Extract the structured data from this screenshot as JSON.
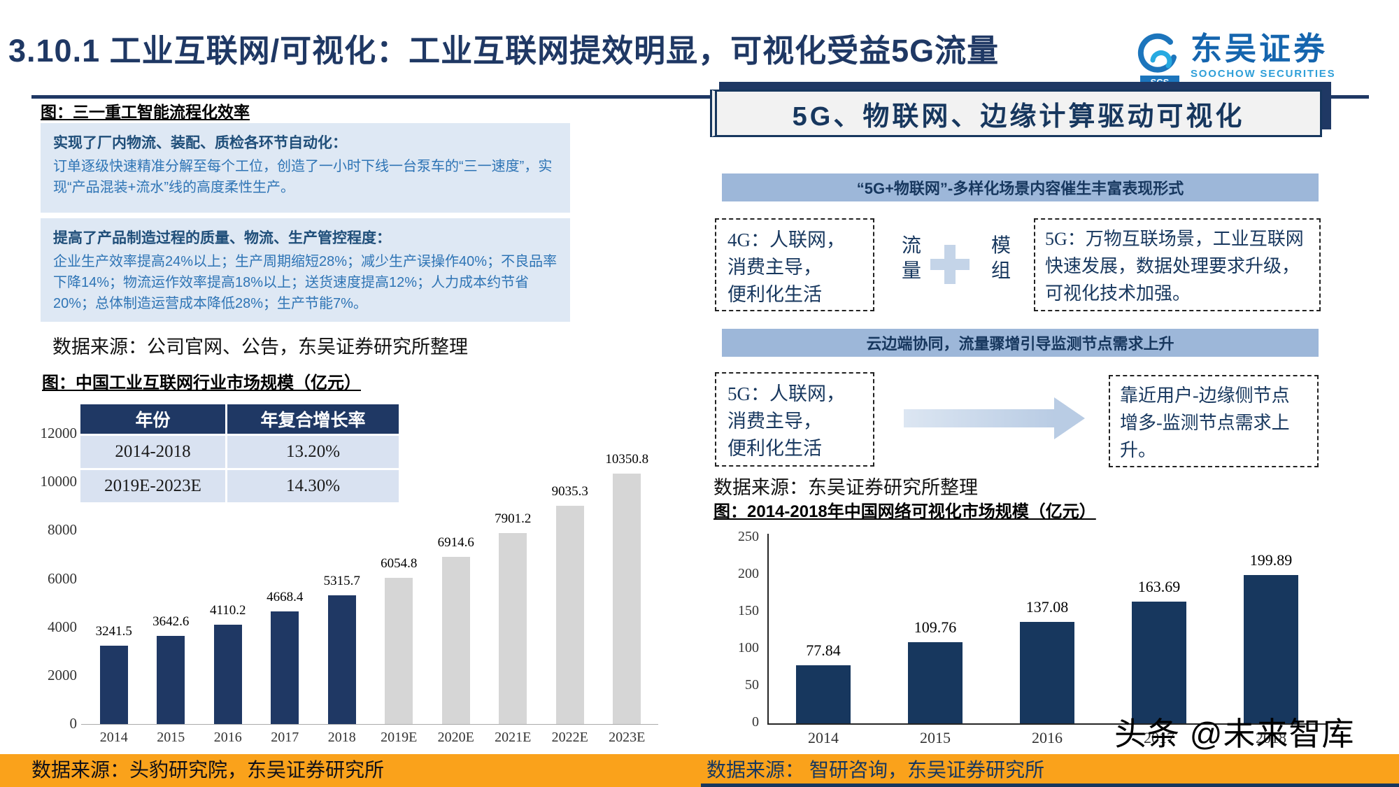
{
  "header": {
    "title": "3.10.1 工业互联网/可视化：工业互联网提效明显，可视化受益5G流量",
    "logo": {
      "cn": "东吴证券",
      "en": "SOOCHOW SECURITIES",
      "icon_text": "SCS"
    }
  },
  "left": {
    "fig1_label": "图：三一重工智能流程化效率",
    "infobox": {
      "h1": "实现了厂内物流、装配、质检各环节自动化：",
      "p1": "订单逐级快速精准分解至每个工位，创造了一小时下线一台泵车的“三一速度”，实现“产品混装+流水”线的高度柔性生产。",
      "h2": "提高了产品制造过程的质量、物流、生产管控程度：",
      "p2": "企业生产效率提高24%以上；生产周期缩短28%；减少生产误操作40%；不良品率下降14%；物流运作效率提高18%以上；送货速度提高12%；人力成本约节省20%；总体制造运营成本降低28%；生产节能7%。"
    },
    "source1": "数据来源：公司官网、公告，东吴证券研究所整理",
    "fig2_label": "图：中国工业互联网行业市场规模（亿元）",
    "table": {
      "headers": [
        "年份",
        "年复合增长率"
      ],
      "rows": [
        [
          "2014-2018",
          "13.20%"
        ],
        [
          "2019E-2023E",
          "14.30%"
        ]
      ]
    },
    "source2": "数据来源：头豹研究院，东吴证券研究所"
  },
  "right": {
    "box_title": "5G、物联网、边缘计算驱动可视化",
    "banner1": "“5G+物联网”-多样化场景内容催生丰富表现形式",
    "flow1": {
      "left_box": "4G：人联网，\n消费主导，\n便利化生活",
      "mid_left": "流量",
      "mid_right": "模组",
      "right_box": "5G：万物互联场景，工业互联网快速发展，数据处理要求升级，可视化技术加强。"
    },
    "banner2": "云边端协同，流量骤增引导监测节点需求上升",
    "flow2": {
      "left_box": "5G：人联网，\n消费主导，\n便利化生活",
      "right_box": "靠近用户-边缘侧节点增多-监测节点需求上升。"
    },
    "source1": "数据来源：东吴证券研究所整理",
    "fig_label": "图：2014-2018年中国网络可视化市场规模（亿元）",
    "source2": "数据来源： 智研咨询，东吴证券研究所"
  },
  "watermark": "头条 @未来智库",
  "colors": {
    "navy": "#1F3864",
    "deep_navy": "#17375E",
    "light_blue_box": "#DEE8F4",
    "banner_blue": "#9DB7D9",
    "bar_dark": "#1F3864",
    "bar_gray": "#D6D6D6",
    "bar_navy": "#17375E",
    "orange_strip": "#FAA21B"
  },
  "chart_data": [
    {
      "type": "bar",
      "title": "中国工业互联网行业市场规模（亿元）",
      "xlabel": "",
      "ylabel": "",
      "categories": [
        "2014",
        "2015",
        "2016",
        "2017",
        "2018",
        "2019E",
        "2020E",
        "2021E",
        "2022E",
        "2023E"
      ],
      "values": [
        3241.5,
        3642.6,
        4110.2,
        4668.4,
        5315.7,
        6054.8,
        6914.6,
        7901.2,
        9035.3,
        10350.8
      ],
      "ylim": [
        0,
        12000
      ],
      "yticks": [
        0,
        2000,
        4000,
        6000,
        8000,
        10000,
        12000
      ],
      "bar_colors": [
        "#1F3864",
        "#1F3864",
        "#1F3864",
        "#1F3864",
        "#1F3864",
        "#D6D6D6",
        "#D6D6D6",
        "#D6D6D6",
        "#D6D6D6",
        "#D6D6D6"
      ],
      "annotations": {
        "cagr_2014_2018": "13.20%",
        "cagr_2019E_2023E": "14.30%"
      },
      "grid": false,
      "legend": "none"
    },
    {
      "type": "bar",
      "title": "2014-2018年中国网络可视化市场规模（亿元）",
      "xlabel": "",
      "ylabel": "",
      "categories": [
        "2014",
        "2015",
        "2016",
        "2017",
        "2018"
      ],
      "values": [
        77.84,
        109.76,
        137.08,
        163.69,
        199.89
      ],
      "ylim": [
        0,
        250
      ],
      "yticks": [
        0,
        50,
        100,
        150,
        200,
        250
      ],
      "bar_color": "#17375E",
      "grid": false,
      "legend": "none"
    }
  ]
}
